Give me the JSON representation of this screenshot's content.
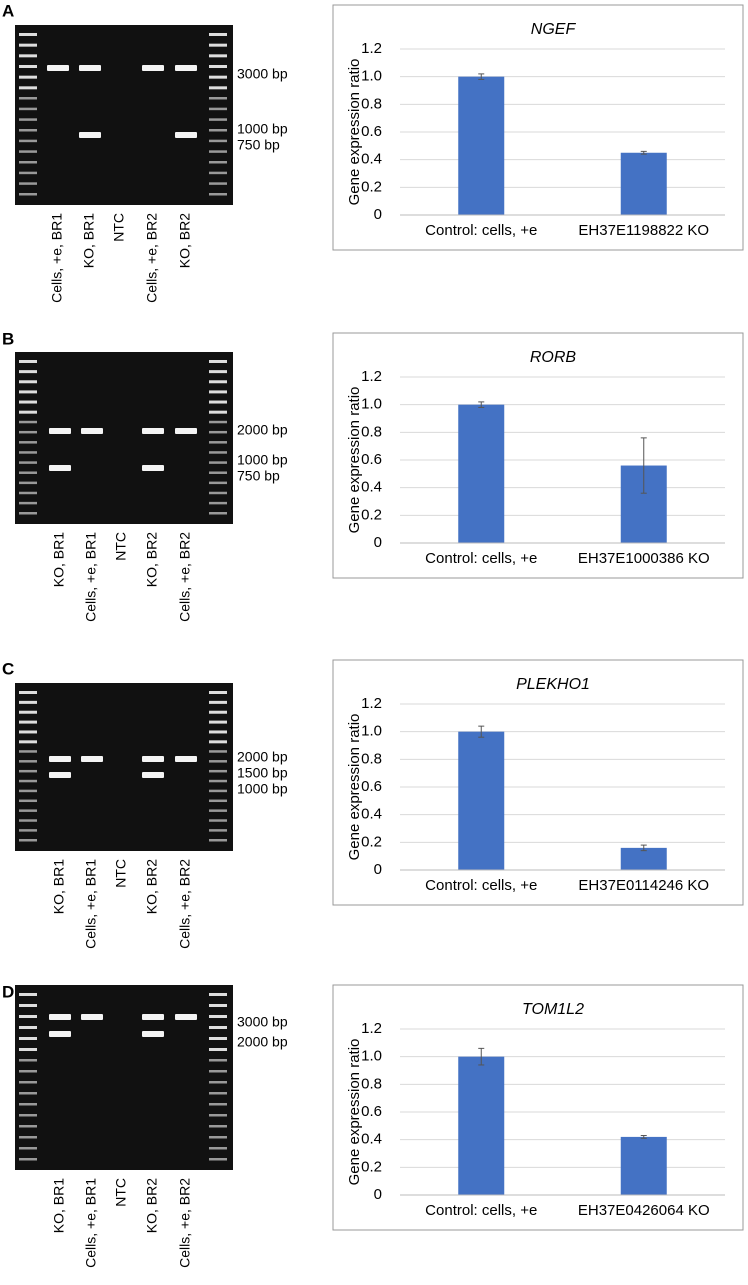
{
  "panel_labels": [
    "A",
    "B",
    "C",
    "D"
  ],
  "gels": [
    {
      "lanes": [
        "Cells, +e, BR1",
        "KO, BR1",
        "NTC",
        "Cells, +e, BR2",
        "KO, BR2"
      ],
      "markers": [
        "3000 bp",
        "1000 bp",
        "750 bp"
      ]
    },
    {
      "lanes": [
        "KO, BR1",
        "Cells, +e, BR1",
        "NTC",
        "KO, BR2",
        "Cells, +e, BR2"
      ],
      "markers": [
        "2000 bp",
        "1000 bp",
        "750 bp"
      ]
    },
    {
      "lanes": [
        "KO, BR1",
        "Cells, +e, BR1",
        "NTC",
        "KO, BR2",
        "Cells, +e, BR2"
      ],
      "markers": [
        "2000 bp",
        "1500 bp",
        "1000 bp"
      ]
    },
    {
      "lanes": [
        "KO, BR1",
        "Cells, +e, BR1",
        "NTC",
        "KO, BR2",
        "Cells, +e, BR2"
      ],
      "markers": [
        "3000 bp",
        "2000 bp"
      ]
    }
  ],
  "chart_data": [
    {
      "type": "bar",
      "title": "NGEF",
      "y_label": "Gene expression ratio",
      "categories": [
        "Control: cells, +e",
        "EH37E1198822 KO"
      ],
      "values": [
        1.0,
        0.45
      ],
      "errors": [
        0.02,
        0.01
      ],
      "color": "#4472c4",
      "ylim": [
        0,
        1.2
      ],
      "yticks": [
        0,
        0.2,
        0.4,
        0.6,
        0.8,
        {
          "value": 1,
          "label": "1.0"
        },
        1.2
      ],
      "grid": true
    },
    {
      "type": "bar",
      "title": "RORB",
      "y_label": "Gene expression ratio",
      "categories": [
        "Control: cells, +e",
        "EH37E1000386 KO"
      ],
      "values": [
        1.0,
        0.56
      ],
      "errors": [
        0.02,
        0.2
      ],
      "color": "#4472c4",
      "ylim": [
        0,
        1.2
      ],
      "yticks": [
        0,
        0.2,
        0.4,
        0.6,
        0.8,
        {
          "value": 1,
          "label": "1.0"
        },
        1.2
      ],
      "grid": true
    },
    {
      "type": "bar",
      "title": "PLEKHO1",
      "y_label": "Gene expression ratio",
      "categories": [
        "Control: cells, +e",
        "EH37E0114246 KO"
      ],
      "values": [
        1.0,
        0.16
      ],
      "errors": [
        0.04,
        0.02
      ],
      "color": "#4472c4",
      "ylim": [
        0,
        1.2
      ],
      "yticks": [
        0,
        0.2,
        0.4,
        0.6,
        0.8,
        {
          "value": 1,
          "label": "1.0"
        },
        1.2
      ],
      "grid": true
    },
    {
      "type": "bar",
      "title": "TOM1L2",
      "y_label": "Gene expression ratio",
      "categories": [
        "Control: cells, +e",
        "EH37E0426064 KO"
      ],
      "values": [
        1.0,
        0.42
      ],
      "errors": [
        0.06,
        0.01
      ],
      "color": "#4472c4",
      "ylim": [
        0,
        1.2
      ],
      "yticks": [
        0,
        0.2,
        0.4,
        0.6,
        0.8,
        {
          "value": 1,
          "label": "1.0"
        },
        1.2
      ],
      "grid": true
    }
  ]
}
